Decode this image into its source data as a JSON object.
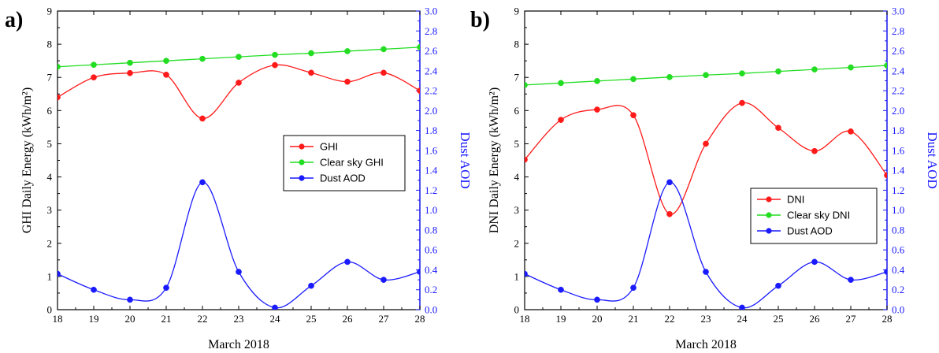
{
  "chart_data": [
    {
      "type": "line",
      "panel_label": "a)",
      "x": [
        18,
        19,
        20,
        21,
        22,
        23,
        24,
        25,
        26,
        27,
        28
      ],
      "xticks": [
        "18",
        "19",
        "20",
        "21",
        "22",
        "23",
        "24",
        "25",
        "26",
        "27",
        "28"
      ],
      "xlim": [
        18,
        28
      ],
      "xlabel": "March 2018",
      "ylabel": "GHI Daily Energy (kWh/m²)",
      "ylim": [
        0,
        9
      ],
      "yticks": [
        "0",
        "1",
        "2",
        "3",
        "4",
        "5",
        "6",
        "7",
        "8",
        "9"
      ],
      "y2label": "Dust AOD",
      "y2lim": [
        0,
        3
      ],
      "y2ticks": [
        "0.0",
        "0.2",
        "0.4",
        "0.6",
        "0.8",
        "1.0",
        "1.2",
        "1.4",
        "1.6",
        "1.8",
        "2.0",
        "2.2",
        "2.4",
        "2.6",
        "2.8",
        "3.0"
      ],
      "legend_position": "center-right",
      "series": [
        {
          "name": "GHI",
          "axis": "left",
          "color": "#ff1a1a",
          "values": [
            6.4,
            7.0,
            7.13,
            7.08,
            5.76,
            6.84,
            7.37,
            7.14,
            6.87,
            7.14,
            6.6
          ]
        },
        {
          "name": "Clear sky GHI",
          "axis": "left",
          "color": "#22dd22",
          "values": [
            7.32,
            7.38,
            7.44,
            7.5,
            7.56,
            7.62,
            7.68,
            7.73,
            7.79,
            7.85,
            7.91
          ]
        },
        {
          "name": "Dust AOD",
          "axis": "right",
          "color": "#1a1aff",
          "values": [
            0.36,
            0.2,
            0.1,
            0.22,
            1.28,
            0.38,
            0.02,
            0.24,
            0.48,
            0.3,
            0.38
          ]
        }
      ]
    },
    {
      "type": "line",
      "panel_label": "b)",
      "x": [
        18,
        19,
        20,
        21,
        22,
        23,
        24,
        25,
        26,
        27,
        28
      ],
      "xticks": [
        "18",
        "19",
        "20",
        "21",
        "22",
        "23",
        "24",
        "25",
        "26",
        "27",
        "28"
      ],
      "xlim": [
        18,
        28
      ],
      "xlabel": "March 2018",
      "ylabel": "DNI Daily Energy (kWh/m²)",
      "ylim": [
        0,
        9
      ],
      "yticks": [
        "0",
        "1",
        "2",
        "3",
        "4",
        "5",
        "6",
        "7",
        "8",
        "9"
      ],
      "y2label": "Dust AOD",
      "y2lim": [
        0,
        3
      ],
      "y2ticks": [
        "0.0",
        "0.2",
        "0.4",
        "0.6",
        "0.8",
        "1.0",
        "1.2",
        "1.4",
        "1.6",
        "1.8",
        "2.0",
        "2.2",
        "2.4",
        "2.6",
        "2.8",
        "3.0"
      ],
      "legend_position": "bottom-right",
      "series": [
        {
          "name": "DNI",
          "axis": "left",
          "color": "#ff1a1a",
          "values": [
            4.52,
            5.72,
            6.03,
            5.86,
            2.88,
            5.0,
            6.23,
            5.48,
            4.78,
            5.37,
            4.05
          ]
        },
        {
          "name": "Clear sky DNI",
          "axis": "left",
          "color": "#22dd22",
          "values": [
            6.77,
            6.83,
            6.89,
            6.95,
            7.01,
            7.07,
            7.12,
            7.18,
            7.24,
            7.3,
            7.36
          ]
        },
        {
          "name": "Dust AOD",
          "axis": "right",
          "color": "#1a1aff",
          "values": [
            0.36,
            0.2,
            0.1,
            0.22,
            1.28,
            0.38,
            0.02,
            0.24,
            0.48,
            0.3,
            0.38
          ]
        }
      ]
    }
  ]
}
